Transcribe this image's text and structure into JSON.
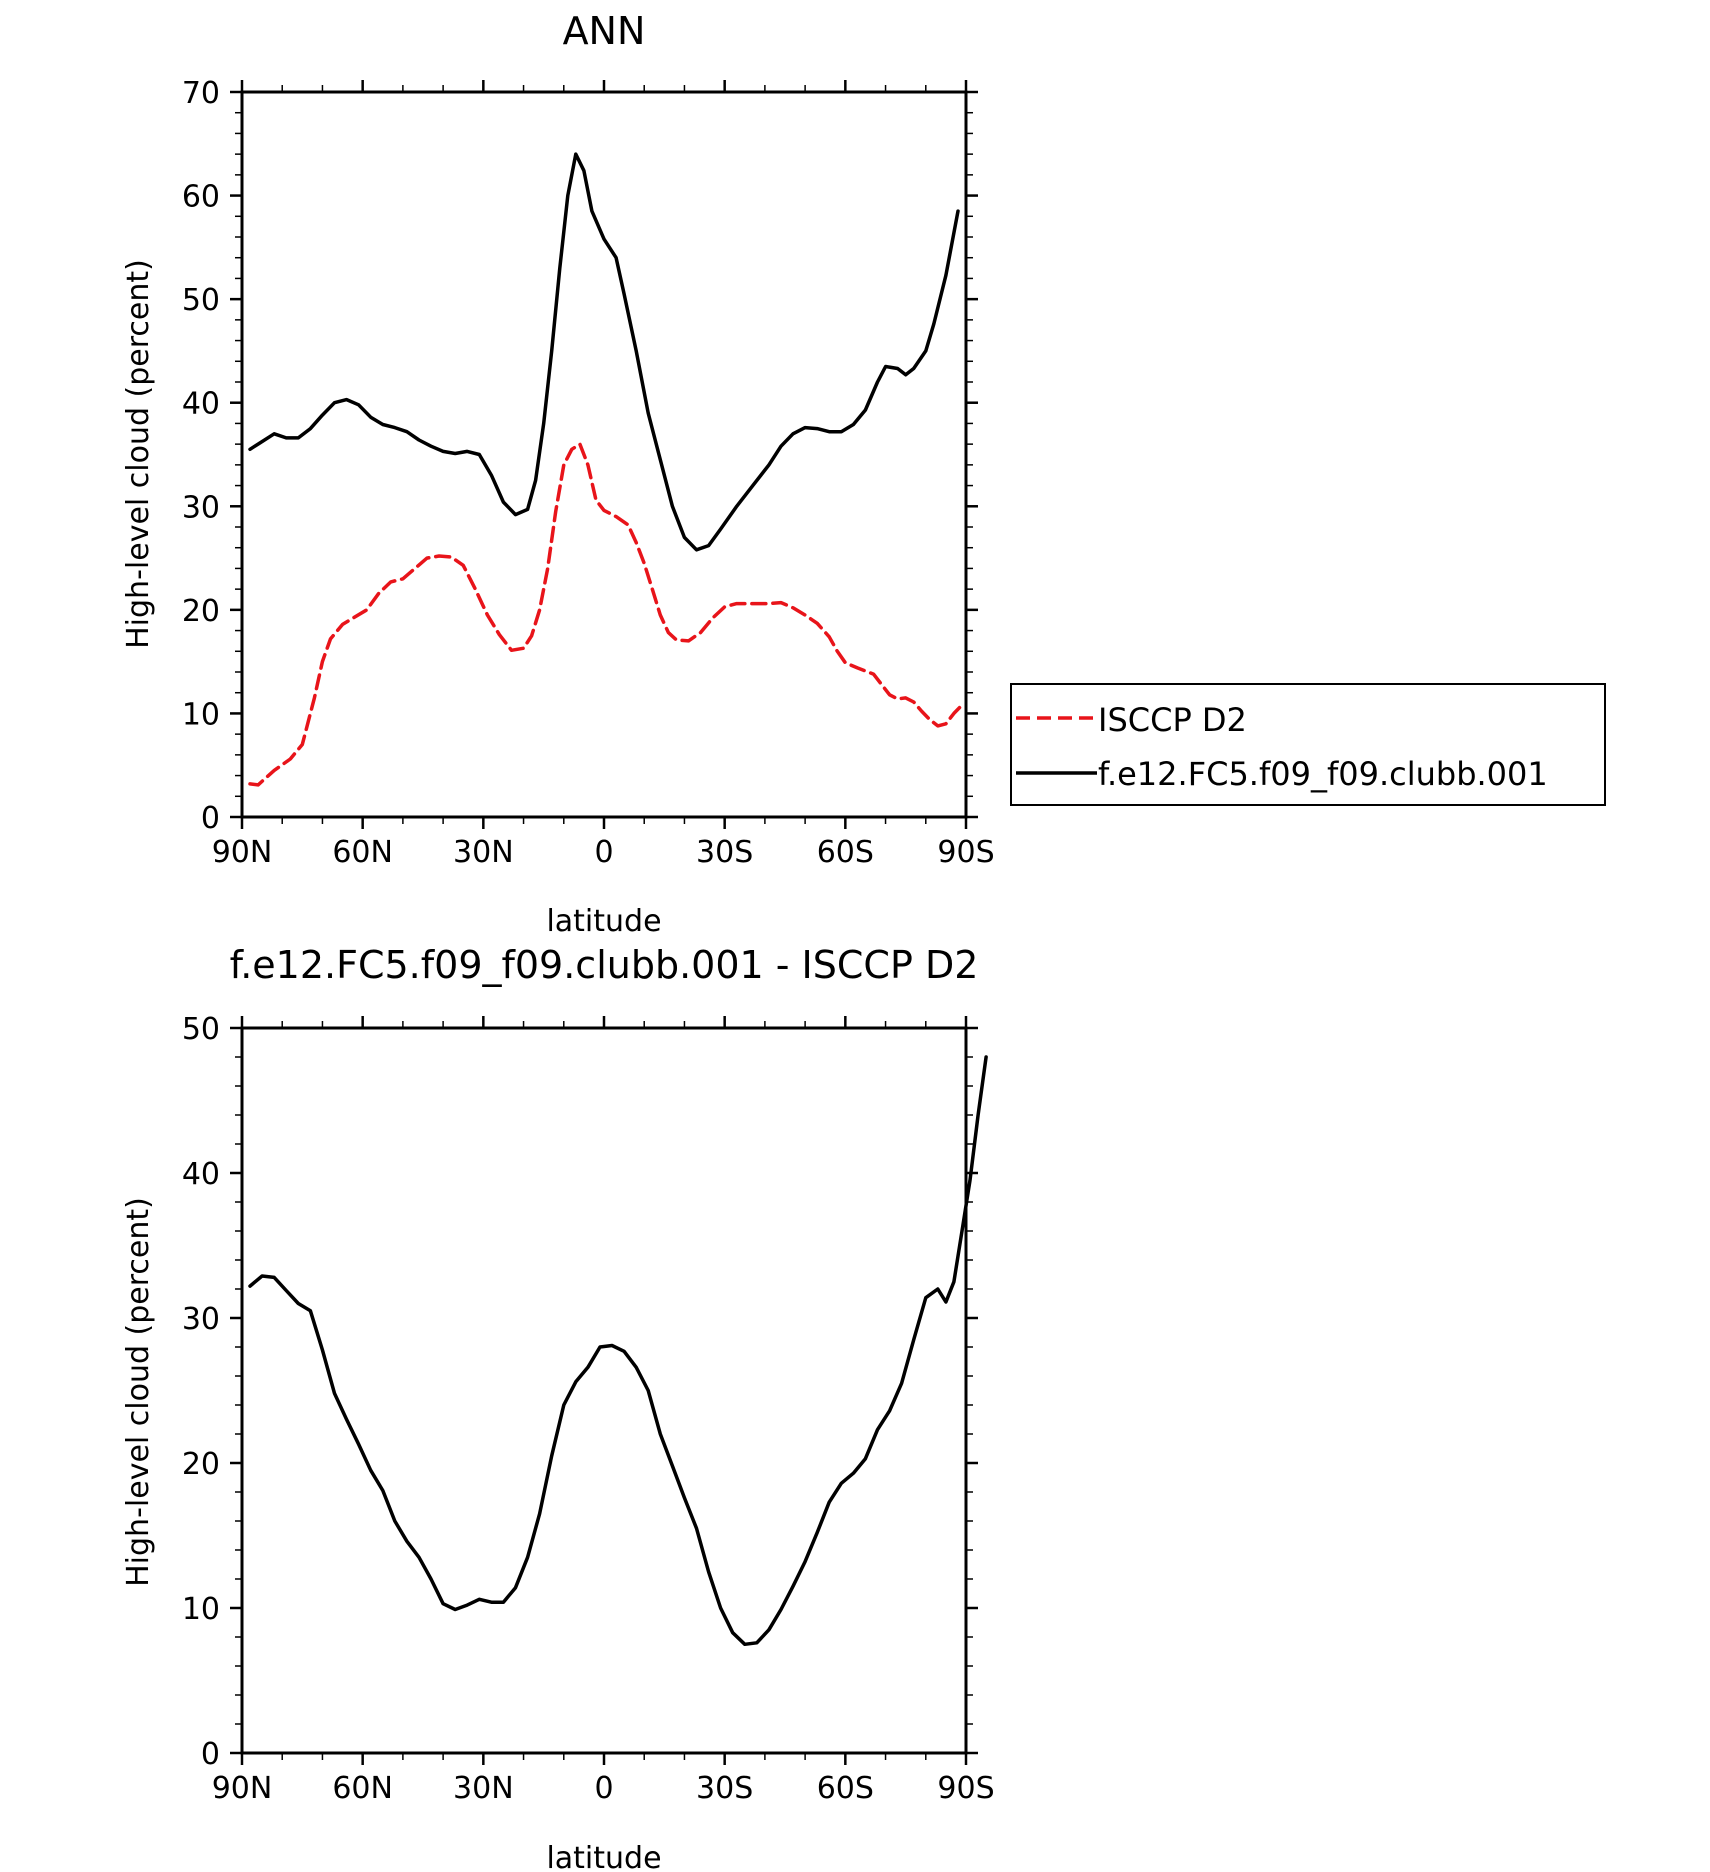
{
  "chart_data": [
    {
      "type": "line",
      "title": "ANN",
      "xlabel": "latitude",
      "ylabel": "High-level cloud (percent)",
      "xlim": [
        90,
        -90
      ],
      "ylim": [
        0,
        70
      ],
      "x_tick_values": [
        90,
        60,
        30,
        0,
        -30,
        -60,
        -90
      ],
      "x_tick_labels": [
        "90N",
        "60N",
        "30N",
        "0",
        "30S",
        "60S",
        "90S"
      ],
      "y_ticks": [
        0,
        10,
        20,
        30,
        40,
        50,
        60,
        70
      ],
      "legend_position": "right",
      "series": [
        {
          "name": "ISCCP D2",
          "color": "#e8141a",
          "dash": "dashed",
          "points": [
            [
              88,
              3.2
            ],
            [
              86,
              3.1
            ],
            [
              82,
              4.5
            ],
            [
              78,
              5.6
            ],
            [
              75,
              7
            ],
            [
              72,
              11.5
            ],
            [
              70,
              15
            ],
            [
              68,
              17.2
            ],
            [
              65,
              18.6
            ],
            [
              62,
              19.3
            ],
            [
              59,
              20
            ],
            [
              56,
              21.6
            ],
            [
              53,
              22.7
            ],
            [
              50,
              23
            ],
            [
              47,
              24
            ],
            [
              44,
              25
            ],
            [
              41,
              25.2
            ],
            [
              38,
              25.1
            ],
            [
              35,
              24.3
            ],
            [
              32,
              22
            ],
            [
              29,
              19.5
            ],
            [
              26,
              17.6
            ],
            [
              23,
              16.1
            ],
            [
              20,
              16.3
            ],
            [
              18,
              17.5
            ],
            [
              16,
              20
            ],
            [
              14,
              24
            ],
            [
              12,
              29.5
            ],
            [
              10,
              34
            ],
            [
              8,
              35.5
            ],
            [
              6,
              36
            ],
            [
              4,
              34
            ],
            [
              2,
              30.6
            ],
            [
              0,
              29.6
            ],
            [
              -3,
              29
            ],
            [
              -6,
              28.2
            ],
            [
              -8,
              26.5
            ],
            [
              -10,
              24.5
            ],
            [
              -12,
              22
            ],
            [
              -14,
              19.5
            ],
            [
              -16,
              17.8
            ],
            [
              -18,
              17.1
            ],
            [
              -21,
              17
            ],
            [
              -24,
              17.8
            ],
            [
              -27,
              19.2
            ],
            [
              -30,
              20.3
            ],
            [
              -33,
              20.6
            ],
            [
              -37,
              20.6
            ],
            [
              -41,
              20.6
            ],
            [
              -44,
              20.7
            ],
            [
              -47,
              20.2
            ],
            [
              -50,
              19.5
            ],
            [
              -53,
              18.7
            ],
            [
              -56,
              17.4
            ],
            [
              -58,
              16
            ],
            [
              -60,
              14.9
            ],
            [
              -63,
              14.4
            ],
            [
              -65,
              14.1
            ],
            [
              -67,
              13.8
            ],
            [
              -69,
              12.8
            ],
            [
              -71,
              11.8
            ],
            [
              -73,
              11.4
            ],
            [
              -75,
              11.5
            ],
            [
              -77,
              11.1
            ],
            [
              -79,
              10.2
            ],
            [
              -81,
              9.4
            ],
            [
              -83,
              8.8
            ],
            [
              -85,
              9
            ],
            [
              -87,
              10
            ],
            [
              -89,
              10.8
            ]
          ]
        },
        {
          "name": "f.e12.FC5.f09_f09.clubb.001",
          "color": "#000000",
          "dash": "solid",
          "points": [
            [
              88,
              35.5
            ],
            [
              86,
              36
            ],
            [
              82,
              37
            ],
            [
              79,
              36.6
            ],
            [
              76,
              36.6
            ],
            [
              73,
              37.5
            ],
            [
              70,
              38.8
            ],
            [
              67,
              40
            ],
            [
              64,
              40.3
            ],
            [
              61,
              39.8
            ],
            [
              58,
              38.6
            ],
            [
              55,
              37.9
            ],
            [
              52,
              37.6
            ],
            [
              49,
              37.2
            ],
            [
              46,
              36.4
            ],
            [
              43,
              35.8
            ],
            [
              40,
              35.3
            ],
            [
              37,
              35.1
            ],
            [
              34,
              35.3
            ],
            [
              31,
              35
            ],
            [
              28,
              33
            ],
            [
              25,
              30.4
            ],
            [
              22,
              29.2
            ],
            [
              19,
              29.7
            ],
            [
              17,
              32.5
            ],
            [
              15,
              38
            ],
            [
              13,
              45
            ],
            [
              11,
              53
            ],
            [
              9,
              60
            ],
            [
              7,
              64
            ],
            [
              5,
              62.4
            ],
            [
              3,
              58.5
            ],
            [
              0,
              55.8
            ],
            [
              -3,
              54
            ],
            [
              -5,
              50.5
            ],
            [
              -8,
              45
            ],
            [
              -11,
              39
            ],
            [
              -14,
              34.5
            ],
            [
              -17,
              30
            ],
            [
              -20,
              27
            ],
            [
              -23,
              25.8
            ],
            [
              -26,
              26.2
            ],
            [
              -29,
              27.8
            ],
            [
              -33,
              30
            ],
            [
              -37,
              32
            ],
            [
              -41,
              34
            ],
            [
              -44,
              35.8
            ],
            [
              -47,
              37
            ],
            [
              -50,
              37.6
            ],
            [
              -53,
              37.5
            ],
            [
              -56,
              37.2
            ],
            [
              -59,
              37.2
            ],
            [
              -62,
              37.9
            ],
            [
              -65,
              39.3
            ],
            [
              -68,
              42
            ],
            [
              -70,
              43.5
            ],
            [
              -73,
              43.3
            ],
            [
              -75,
              42.7
            ],
            [
              -77,
              43.3
            ],
            [
              -80,
              45
            ],
            [
              -82,
              47.6
            ],
            [
              -85,
              52.3
            ],
            [
              -88,
              58.5
            ]
          ]
        }
      ]
    },
    {
      "type": "line",
      "title": "f.e12.FC5.f09_f09.clubb.001 - ISCCP D2",
      "xlabel": "latitude",
      "ylabel": "High-level cloud (percent)",
      "xlim": [
        90,
        -90
      ],
      "ylim": [
        0,
        50
      ],
      "x_tick_values": [
        90,
        60,
        30,
        0,
        -30,
        -60,
        -90
      ],
      "x_tick_labels": [
        "90N",
        "60N",
        "30N",
        "0",
        "30S",
        "60S",
        "90S"
      ],
      "y_ticks": [
        0,
        10,
        20,
        30,
        40,
        50
      ],
      "series": [
        {
          "color": "#000000",
          "dash": "solid",
          "points": [
            [
              88,
              32.2
            ],
            [
              85,
              32.9
            ],
            [
              82,
              32.8
            ],
            [
              79,
              31.9
            ],
            [
              76,
              31
            ],
            [
              73,
              30.5
            ],
            [
              70,
              27.8
            ],
            [
              67,
              24.8
            ],
            [
              64,
              23
            ],
            [
              61,
              21.3
            ],
            [
              58,
              19.5
            ],
            [
              55,
              18.1
            ],
            [
              52,
              16
            ],
            [
              49,
              14.6
            ],
            [
              46,
              13.5
            ],
            [
              43,
              12
            ],
            [
              40,
              10.3
            ],
            [
              37,
              9.9
            ],
            [
              34,
              10.2
            ],
            [
              31,
              10.6
            ],
            [
              28,
              10.4
            ],
            [
              25,
              10.4
            ],
            [
              22,
              11.4
            ],
            [
              19,
              13.5
            ],
            [
              16,
              16.5
            ],
            [
              13,
              20.5
            ],
            [
              10,
              24
            ],
            [
              7,
              25.6
            ],
            [
              4,
              26.6
            ],
            [
              1,
              28
            ],
            [
              -2,
              28.1
            ],
            [
              -5,
              27.7
            ],
            [
              -8,
              26.6
            ],
            [
              -11,
              25
            ],
            [
              -14,
              22
            ],
            [
              -17,
              19.8
            ],
            [
              -20,
              17.6
            ],
            [
              -23,
              15.5
            ],
            [
              -26,
              12.5
            ],
            [
              -29,
              10
            ],
            [
              -32,
              8.3
            ],
            [
              -35,
              7.5
            ],
            [
              -38,
              7.6
            ],
            [
              -41,
              8.5
            ],
            [
              -44,
              9.9
            ],
            [
              -47,
              11.5
            ],
            [
              -50,
              13.2
            ],
            [
              -53,
              15.2
            ],
            [
              -56,
              17.3
            ],
            [
              -59,
              18.6
            ],
            [
              -62,
              19.3
            ],
            [
              -65,
              20.3
            ],
            [
              -68,
              22.3
            ],
            [
              -71,
              23.6
            ],
            [
              -74,
              25.5
            ],
            [
              -77,
              28.5
            ],
            [
              -80,
              31.4
            ],
            [
              -83,
              32
            ],
            [
              -85,
              31.1
            ],
            [
              -87,
              32.5
            ],
            [
              -89,
              36
            ],
            [
              -91,
              39.5
            ],
            [
              -93,
              44
            ],
            [
              -95,
              48
            ]
          ]
        }
      ]
    }
  ]
}
